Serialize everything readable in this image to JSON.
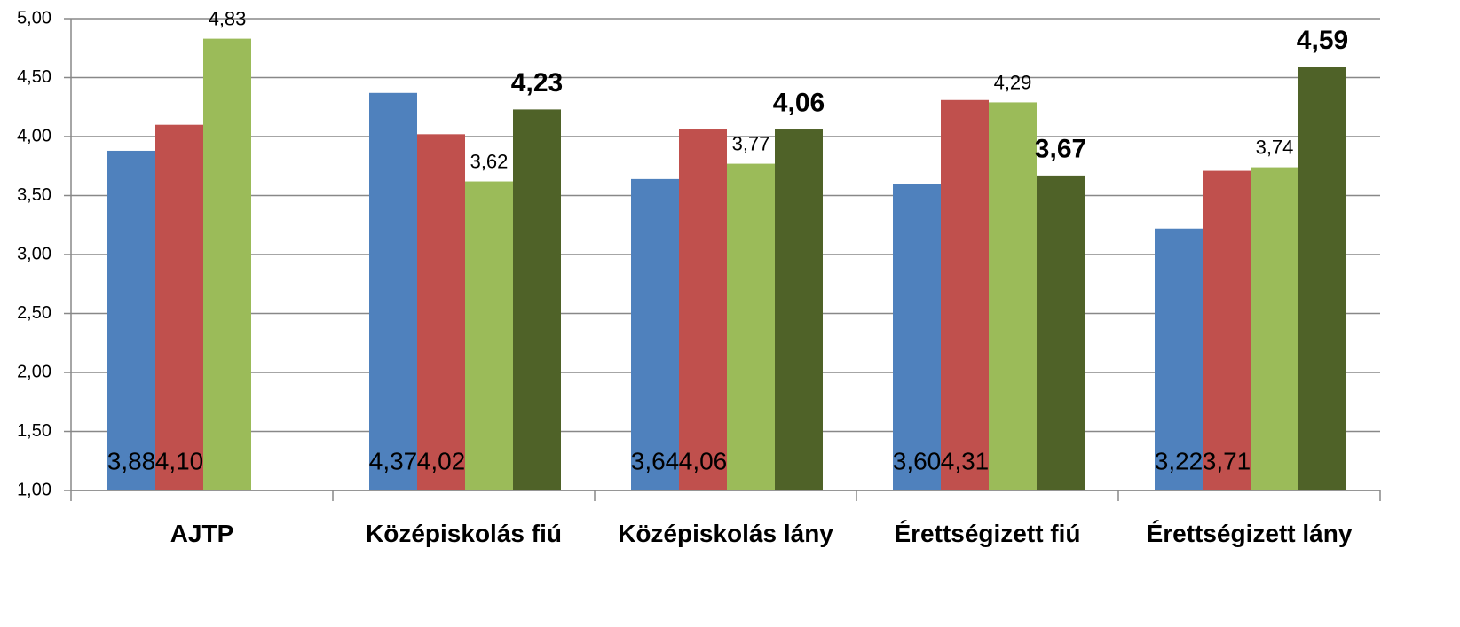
{
  "chart_data": {
    "type": "bar",
    "categories": [
      "AJTP",
      "Középiskolás fiú",
      "Középiskolás lány",
      "Érettségizett fiú",
      "Érettségizett lány"
    ],
    "series": [
      {
        "color": "#4f81bd",
        "values": [
          3.88,
          4.37,
          3.64,
          3.6,
          3.22
        ],
        "value_labels": [
          "3,88",
          "4,37",
          "3,64",
          "3,60",
          "3,22"
        ]
      },
      {
        "color": "#c0504d",
        "values": [
          4.1,
          4.02,
          4.06,
          4.31,
          3.71
        ],
        "value_labels": [
          "4,10",
          "4,02",
          "4,06",
          "4,31",
          "3,71"
        ]
      },
      {
        "color": "#9bbb59",
        "values": [
          4.83,
          3.62,
          3.77,
          4.29,
          3.74
        ],
        "value_labels": [
          "4,83",
          "3,62",
          "3,77",
          "4,29",
          "3,74"
        ]
      },
      {
        "color": "#4f6228",
        "values": [
          null,
          4.23,
          4.06,
          3.67,
          4.59
        ],
        "value_labels": [
          null,
          "4,23",
          "4,06",
          "3,67",
          "4,59"
        ]
      }
    ],
    "ylim": [
      1,
      5
    ],
    "yticks": [
      {
        "value": 1,
        "label": "1,00"
      },
      {
        "value": 1.5,
        "label": "1,50"
      },
      {
        "value": 2,
        "label": "2,00"
      },
      {
        "value": 2.5,
        "label": "2,50"
      },
      {
        "value": 3,
        "label": "3,00"
      },
      {
        "value": 3.5,
        "label": "3,50"
      },
      {
        "value": 4,
        "label": "4,00"
      },
      {
        "value": 4.5,
        "label": "4,50"
      },
      {
        "value": 5,
        "label": "5,00"
      }
    ],
    "grid": true
  }
}
